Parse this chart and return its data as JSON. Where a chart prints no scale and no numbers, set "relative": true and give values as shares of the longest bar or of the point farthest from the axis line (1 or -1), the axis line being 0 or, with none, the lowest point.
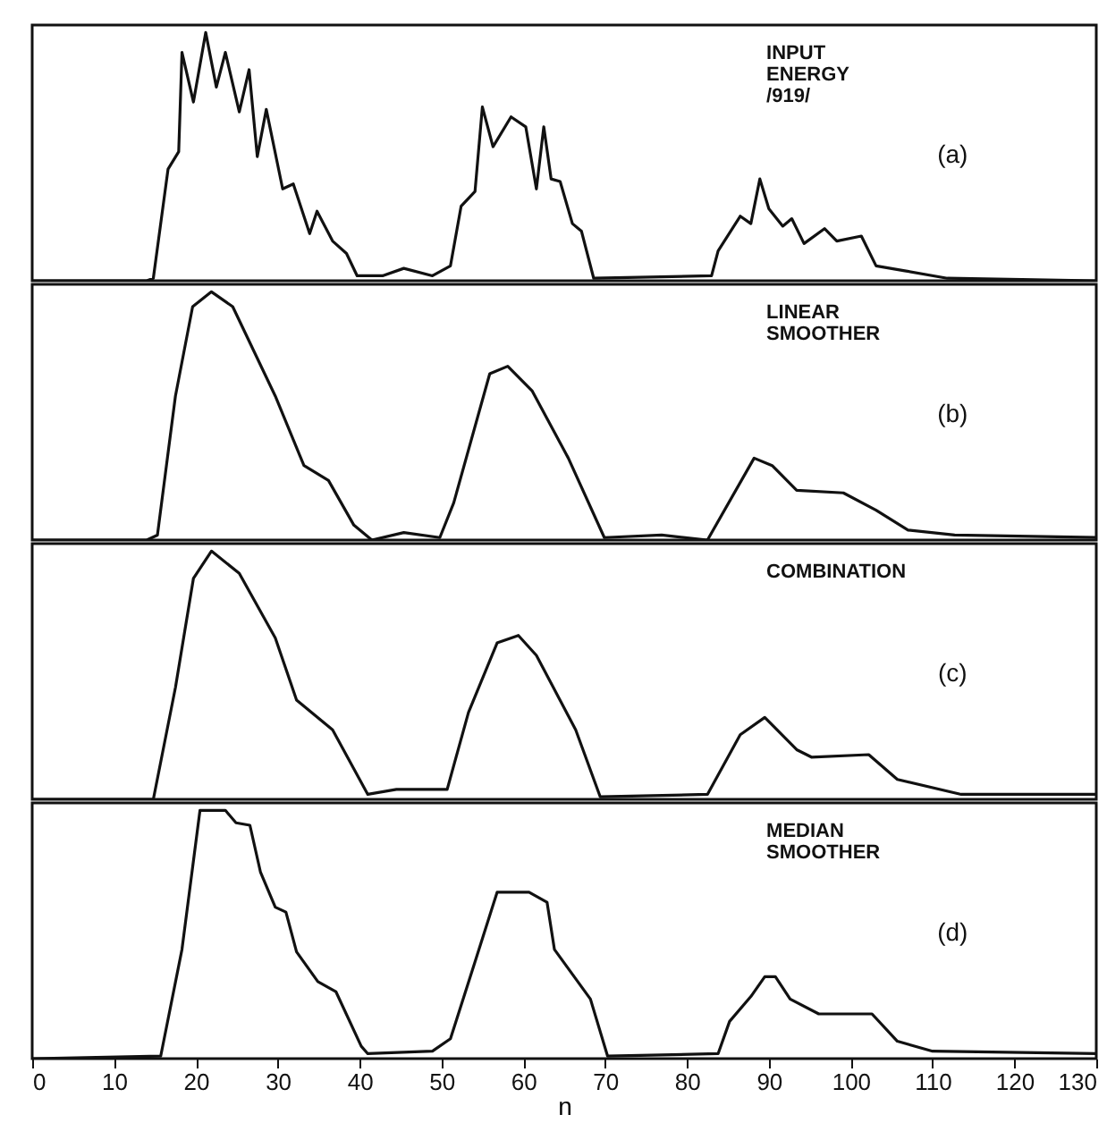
{
  "chart_data": [
    {
      "type": "line",
      "relative": true,
      "xlim": [
        0,
        130
      ],
      "tick_labels": false,
      "annotations": [
        "INPUT ENERGY /919/",
        "(a)"
      ],
      "series": [
        {
          "color": "#111111",
          "x": [
            0,
            14,
            14.8,
            16.6,
            17.9,
            18.3,
            19.7,
            21.2,
            22.5,
            23.6,
            25.3,
            26.5,
            27.5,
            28.6,
            30.6,
            31.9,
            33.9,
            34.8,
            36.7,
            38.4,
            39.7,
            42.8,
            45.4,
            48.9,
            51.1,
            52.4,
            54.1,
            55,
            56.3,
            58.5,
            60.3,
            61.6,
            62.5,
            63.4,
            64.5,
            66,
            67.1,
            68.6,
            83,
            83.8,
            86.5,
            87.8,
            88.9,
            90,
            91.7,
            92.8,
            94.3,
            96.8,
            98.3,
            101.3,
            103.1,
            106.6,
            111.8,
            130
          ],
          "values": [
            0,
            0,
            0.01,
            0.45,
            0.52,
            0.92,
            0.72,
            1,
            0.78,
            0.92,
            0.68,
            0.85,
            0.5,
            0.69,
            0.37,
            0.39,
            0.19,
            0.28,
            0.16,
            0.11,
            0.02,
            0.02,
            0.05,
            0.02,
            0.06,
            0.3,
            0.36,
            0.7,
            0.54,
            0.66,
            0.62,
            0.37,
            0.62,
            0.41,
            0.4,
            0.23,
            0.2,
            0.01,
            0.02,
            0.12,
            0.26,
            0.23,
            0.41,
            0.29,
            0.22,
            0.25,
            0.15,
            0.21,
            0.16,
            0.18,
            0.06,
            0.04,
            0.01,
            0
          ]
        }
      ]
    },
    {
      "type": "line",
      "relative": true,
      "xlim": [
        0,
        130
      ],
      "tick_labels": false,
      "annotations": [
        "LINEAR SMOOTHER",
        "(b)"
      ],
      "series": [
        {
          "color": "#111111",
          "x": [
            0,
            14,
            15.3,
            17.5,
            19.6,
            21.9,
            24.5,
            29.7,
            33.2,
            36.2,
            39.3,
            41.5,
            45.4,
            49.8,
            51.5,
            55.9,
            58.1,
            61.1,
            65.5,
            69.9,
            76.9,
            82.5,
            88.2,
            90.4,
            93.4,
            99.1,
            103.1,
            107,
            112.7,
            130
          ],
          "values": [
            0,
            0,
            0.02,
            0.58,
            0.94,
            1,
            0.94,
            0.58,
            0.3,
            0.24,
            0.06,
            0,
            0.03,
            0.01,
            0.15,
            0.67,
            0.7,
            0.6,
            0.33,
            0.01,
            0.02,
            0,
            0.33,
            0.3,
            0.2,
            0.19,
            0.12,
            0.04,
            0.02,
            0.01
          ]
        }
      ]
    },
    {
      "type": "line",
      "relative": true,
      "xlim": [
        0,
        130
      ],
      "tick_labels": false,
      "annotations": [
        "COMBINATION",
        "(c)"
      ],
      "series": [
        {
          "color": "#111111",
          "x": [
            0,
            14.8,
            17.5,
            19.7,
            21.9,
            25.3,
            29.7,
            32.3,
            36.7,
            41,
            44.5,
            50.7,
            53.3,
            56.8,
            59.4,
            61.6,
            66.4,
            69.4,
            82.5,
            86.5,
            89.5,
            93.4,
            95.2,
            102.2,
            105.7,
            113.5,
            130
          ],
          "values": [
            0,
            0,
            0.45,
            0.89,
            1,
            0.91,
            0.65,
            0.4,
            0.28,
            0.02,
            0.04,
            0.04,
            0.35,
            0.63,
            0.66,
            0.58,
            0.28,
            0.01,
            0.02,
            0.26,
            0.33,
            0.2,
            0.17,
            0.18,
            0.08,
            0.02,
            0.02
          ]
        }
      ]
    },
    {
      "type": "line",
      "relative": true,
      "xlim": [
        0,
        130
      ],
      "xticks": [
        0,
        10,
        20,
        30,
        40,
        50,
        60,
        70,
        80,
        90,
        100,
        110,
        120,
        130
      ],
      "xlabel": "n",
      "tick_labels": "x",
      "annotations": [
        "MEDIAN SMOOTHER",
        "(d)"
      ],
      "series": [
        {
          "color": "#111111",
          "x": [
            0,
            15.7,
            18.3,
            20.5,
            23.6,
            24.9,
            26.6,
            27.9,
            29.7,
            31,
            32.3,
            34.9,
            37.1,
            40.2,
            41,
            48.9,
            51.1,
            54.1,
            56.8,
            60.7,
            62.9,
            63.8,
            68.2,
            70.3,
            83.8,
            85.2,
            87.8,
            89.5,
            90.8,
            92.6,
            96.1,
            102.6,
            105.7,
            110,
            130
          ],
          "values": [
            0,
            0.01,
            0.44,
            1,
            1,
            0.95,
            0.94,
            0.75,
            0.61,
            0.59,
            0.43,
            0.31,
            0.27,
            0.05,
            0.02,
            0.03,
            0.08,
            0.39,
            0.67,
            0.67,
            0.63,
            0.44,
            0.24,
            0.01,
            0.02,
            0.15,
            0.25,
            0.33,
            0.33,
            0.24,
            0.18,
            0.18,
            0.07,
            0.03,
            0.02
          ]
        }
      ]
    }
  ]
}
